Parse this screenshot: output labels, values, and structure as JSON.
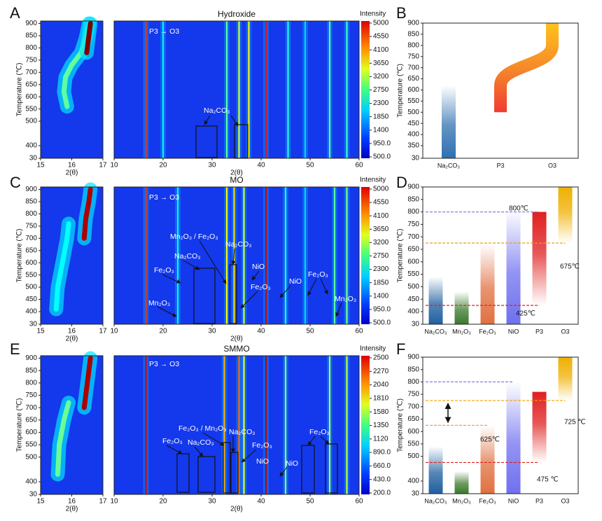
{
  "chart_data": [
    {
      "type": "heatmap",
      "label": "A",
      "ylabel": "Temperature (℃)",
      "xlabel": "2(θ)",
      "xlim": [
        15,
        17
      ],
      "xticks": [
        15,
        16,
        17
      ],
      "ylim": [
        30,
        910
      ],
      "yticks": [
        30,
        400,
        500,
        550,
        600,
        650,
        700,
        750,
        800,
        850,
        900
      ],
      "ridges": [
        {
          "x": [
            15.85,
            15.75,
            15.8,
            16.0,
            16.3,
            16.45,
            16.55
          ],
          "y": [
            560,
            620,
            680,
            730,
            780,
            840,
            900
          ],
          "intensity": 2600
        },
        {
          "x": [
            16.48,
            16.55,
            16.6
          ],
          "y": [
            780,
            850,
            900
          ],
          "intensity": 5000
        }
      ]
    },
    {
      "type": "heatmap",
      "title": "Hydroxide",
      "xlabel": "2(θ)",
      "xlim": [
        10,
        60
      ],
      "xticks": [
        10,
        20,
        30,
        40,
        50,
        60
      ],
      "colorbar": {
        "label": "Intensity",
        "ticks": [
          5000,
          4550,
          4100,
          3650,
          3200,
          2750,
          2300,
          1850,
          1400,
          {
            "value": 950,
            "label": "950.0"
          },
          {
            "value": 500,
            "label": "500.0"
          }
        ]
      },
      "annotations": [
        "P3 → O3",
        "Na₂CO₃"
      ],
      "peaks": [
        {
          "x": 16.5,
          "intensity": 4000
        },
        {
          "x": 20,
          "intensity": 1200
        },
        {
          "x": 33,
          "intensity": 1800
        },
        {
          "x": 35.5,
          "intensity": 2500
        },
        {
          "x": 37.5,
          "intensity": 2800
        },
        {
          "x": 41,
          "intensity": 4200
        },
        {
          "x": 45.5,
          "intensity": 1400
        },
        {
          "x": 49,
          "intensity": 1000
        },
        {
          "x": 54,
          "intensity": 1800
        },
        {
          "x": 57.5,
          "intensity": 1600
        }
      ]
    },
    {
      "type": "range",
      "label": "B",
      "ylabel": "Temperature (℃)",
      "categories": [
        "Na₂CO₃",
        "P3",
        "O3"
      ],
      "ylim": [
        30,
        900
      ],
      "yticks": [
        30,
        350,
        400,
        450,
        500,
        550,
        600,
        650,
        700,
        750,
        800,
        850,
        900
      ],
      "ranges": [
        [
          30,
          620
        ],
        null,
        null
      ],
      "colors": [
        "#3070b0",
        null,
        null
      ],
      "curve": {
        "x": [
          1,
          1,
          2,
          2
        ],
        "y": [
          500,
          620,
          800,
          900
        ]
      }
    },
    {
      "type": "heatmap",
      "label": "C",
      "ylabel": "Temperature (℃)",
      "xlabel": "2(θ)",
      "xlim": [
        15,
        17
      ],
      "xticks": [
        15,
        16,
        17
      ],
      "ylim": [
        30,
        910
      ],
      "yticks": [
        30,
        400,
        450,
        500,
        550,
        600,
        650,
        700,
        750,
        800,
        850,
        900
      ],
      "ridges": [
        {
          "x": [
            15.5,
            15.55,
            15.7,
            15.85,
            15.9
          ],
          "y": [
            410,
            500,
            600,
            700,
            760
          ],
          "intensity": 2200
        },
        {
          "x": [
            16.4,
            16.45,
            16.55,
            16.6
          ],
          "y": [
            700,
            780,
            850,
            900
          ],
          "intensity": 4800
        }
      ]
    },
    {
      "type": "heatmap",
      "title": "MO",
      "xlabel": "2(θ)",
      "xlim": [
        10,
        60
      ],
      "xticks": [
        10,
        20,
        30,
        40,
        50,
        60
      ],
      "colorbar": {
        "label": "Intensity",
        "ticks": [
          5000,
          4550,
          4100,
          3650,
          3200,
          2750,
          2300,
          1850,
          1400,
          {
            "value": 950,
            "label": "950.0"
          },
          {
            "value": 500,
            "label": "500.0"
          }
        ]
      },
      "annotations": [
        "P3 → O3",
        "Mn₂O₃ / Fe₂O₃",
        "Na₂CO₃",
        "Na₂CO₃",
        "NiO",
        "Fe₂O₃",
        "Fe₂O₃",
        "NiO",
        "Fe₂O₃",
        "Mn₂O₃",
        "Mn₂O₃"
      ],
      "peaks": [
        {
          "x": 16.5,
          "intensity": 4000
        },
        {
          "x": 23,
          "intensity": 1200
        },
        {
          "x": 33,
          "intensity": 2800
        },
        {
          "x": 34.5,
          "intensity": 3000
        },
        {
          "x": 36.5,
          "intensity": 2500
        },
        {
          "x": 41,
          "intensity": 4500
        },
        {
          "x": 45,
          "intensity": 1400
        },
        {
          "x": 49,
          "intensity": 1000
        },
        {
          "x": 55,
          "intensity": 1800
        },
        {
          "x": 57.5,
          "intensity": 2000
        }
      ]
    },
    {
      "type": "range",
      "label": "D",
      "ylabel": "Temperature (℃)",
      "categories": [
        "Na₂CO₃",
        "Mn₂O₃",
        "Fe₂O₃",
        "NiO",
        "P3",
        "O3"
      ],
      "ylim": [
        30,
        900
      ],
      "yticks": [
        30,
        400,
        450,
        500,
        550,
        600,
        650,
        700,
        750,
        800,
        850,
        900
      ],
      "ranges": [
        [
          30,
          540
        ],
        [
          30,
          480
        ],
        [
          30,
          670
        ],
        [
          30,
          810
        ],
        [
          425,
          800
        ],
        [
          675,
          900
        ]
      ],
      "colors": [
        "#2060a0",
        "#3a7a2a",
        "#e07040",
        "#7070f0",
        "#e02020",
        "#f0b000"
      ],
      "lines": [
        {
          "value": 800,
          "color": "#8080e0"
        },
        {
          "value": 675,
          "color": "#f0a000"
        },
        {
          "value": 425,
          "color": "#e02020"
        }
      ],
      "annotations": [
        "800℃",
        "675℃",
        "425℃"
      ]
    },
    {
      "type": "heatmap",
      "label": "E",
      "ylabel": "Temperature (℃)",
      "xlabel": "2(θ)",
      "xlim": [
        15,
        17
      ],
      "xticks": [
        15,
        16,
        17
      ],
      "ylim": [
        30,
        910
      ],
      "yticks": [
        30,
        400,
        500,
        550,
        600,
        650,
        700,
        750,
        800,
        850,
        900
      ],
      "ridges": [
        {
          "x": [
            15.55,
            15.6,
            15.75,
            15.9
          ],
          "y": [
            430,
            550,
            650,
            720
          ],
          "intensity": 1300
        },
        {
          "x": [
            16.4,
            16.5,
            16.6
          ],
          "y": [
            700,
            800,
            900
          ],
          "intensity": 2400
        }
      ]
    },
    {
      "type": "heatmap",
      "title": "SMMO",
      "xlabel": "2(θ)",
      "xlim": [
        10,
        60
      ],
      "xticks": [
        10,
        20,
        30,
        40,
        50,
        60
      ],
      "colorbar": {
        "label": "Intensity",
        "ticks": [
          2500,
          2270,
          2040,
          1810,
          1580,
          1350,
          1120,
          {
            "value": 890,
            "label": "890.0"
          },
          {
            "value": 660,
            "label": "660.0"
          },
          {
            "value": 430,
            "label": "430.0"
          },
          {
            "value": 200,
            "label": "200.0"
          }
        ]
      },
      "annotations": [
        "P3 → O3",
        "Fe₂O₃ / Mn₂O₃",
        "Na₂CO₃",
        "Fe₂O₃",
        "Na₂CO₃",
        "Fe₂O₃",
        "NiO",
        "NiO",
        "Fe₂O₃"
      ],
      "peaks": [
        {
          "x": 16.5,
          "intensity": 2200
        },
        {
          "x": 32.5,
          "intensity": 1600
        },
        {
          "x": 35.5,
          "intensity": 1800
        },
        {
          "x": 36.5,
          "intensity": 1300
        },
        {
          "x": 41,
          "intensity": 2300
        },
        {
          "x": 45,
          "intensity": 1000
        },
        {
          "x": 54,
          "intensity": 1100
        },
        {
          "x": 57.5,
          "intensity": 1200
        }
      ]
    },
    {
      "type": "range",
      "label": "F",
      "ylabel": "Temperature (℃)",
      "categories": [
        "Na₂CO₃",
        "Mn₂O₃",
        "Fe₂O₃",
        "NiO",
        "P3",
        "O3"
      ],
      "ylim": [
        30,
        900
      ],
      "yticks": [
        30,
        400,
        500,
        550,
        600,
        650,
        700,
        750,
        800,
        850,
        900
      ],
      "ranges": [
        [
          30,
          540
        ],
        [
          30,
          440
        ],
        [
          30,
          625
        ],
        [
          30,
          800
        ],
        [
          475,
          760
        ],
        [
          725,
          900
        ]
      ],
      "colors": [
        "#2060a0",
        "#3a7a2a",
        "#e07040",
        "#7070f0",
        "#e02020",
        "#f0b000"
      ],
      "lines": [
        {
          "value": 800,
          "color": "#8080e0"
        },
        {
          "value": 725,
          "color": "#f0a000"
        },
        {
          "value": 625,
          "color": "#f0a060"
        },
        {
          "value": 475,
          "color": "#e02020"
        }
      ],
      "annotations": [
        "625℃",
        "725 ℃",
        "475 ℃"
      ]
    }
  ]
}
